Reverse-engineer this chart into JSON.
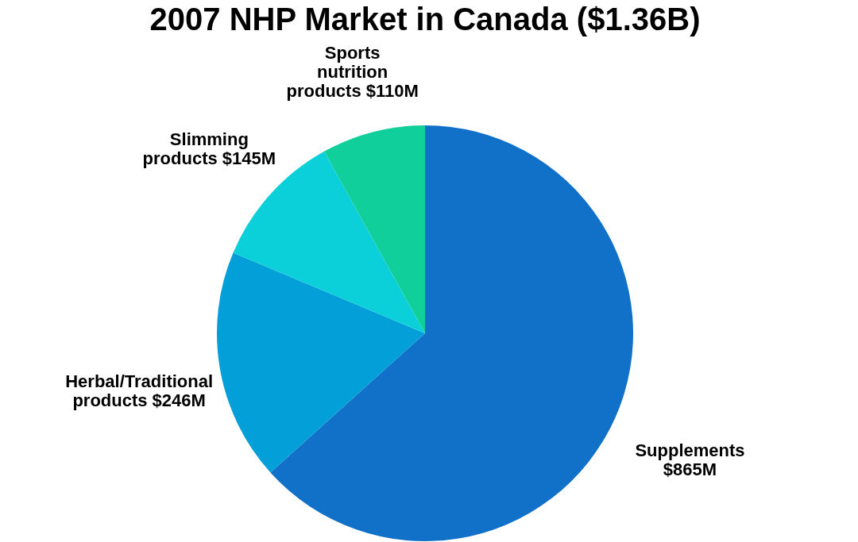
{
  "chart_data": {
    "type": "pie",
    "title": "2007 NHP Market in Canada ($1.36B)",
    "categories": [
      "Supplements",
      "Herbal/Traditional products",
      "Slimming products",
      "Sports nutrition products"
    ],
    "values": [
      865,
      246,
      145,
      110
    ],
    "value_labels": [
      "$865M",
      "$246M",
      "$145M",
      "$110M"
    ],
    "colors": [
      "#1170c8",
      "#039fd9",
      "#0bd0d9",
      "#10cf9b"
    ],
    "legend": false
  }
}
